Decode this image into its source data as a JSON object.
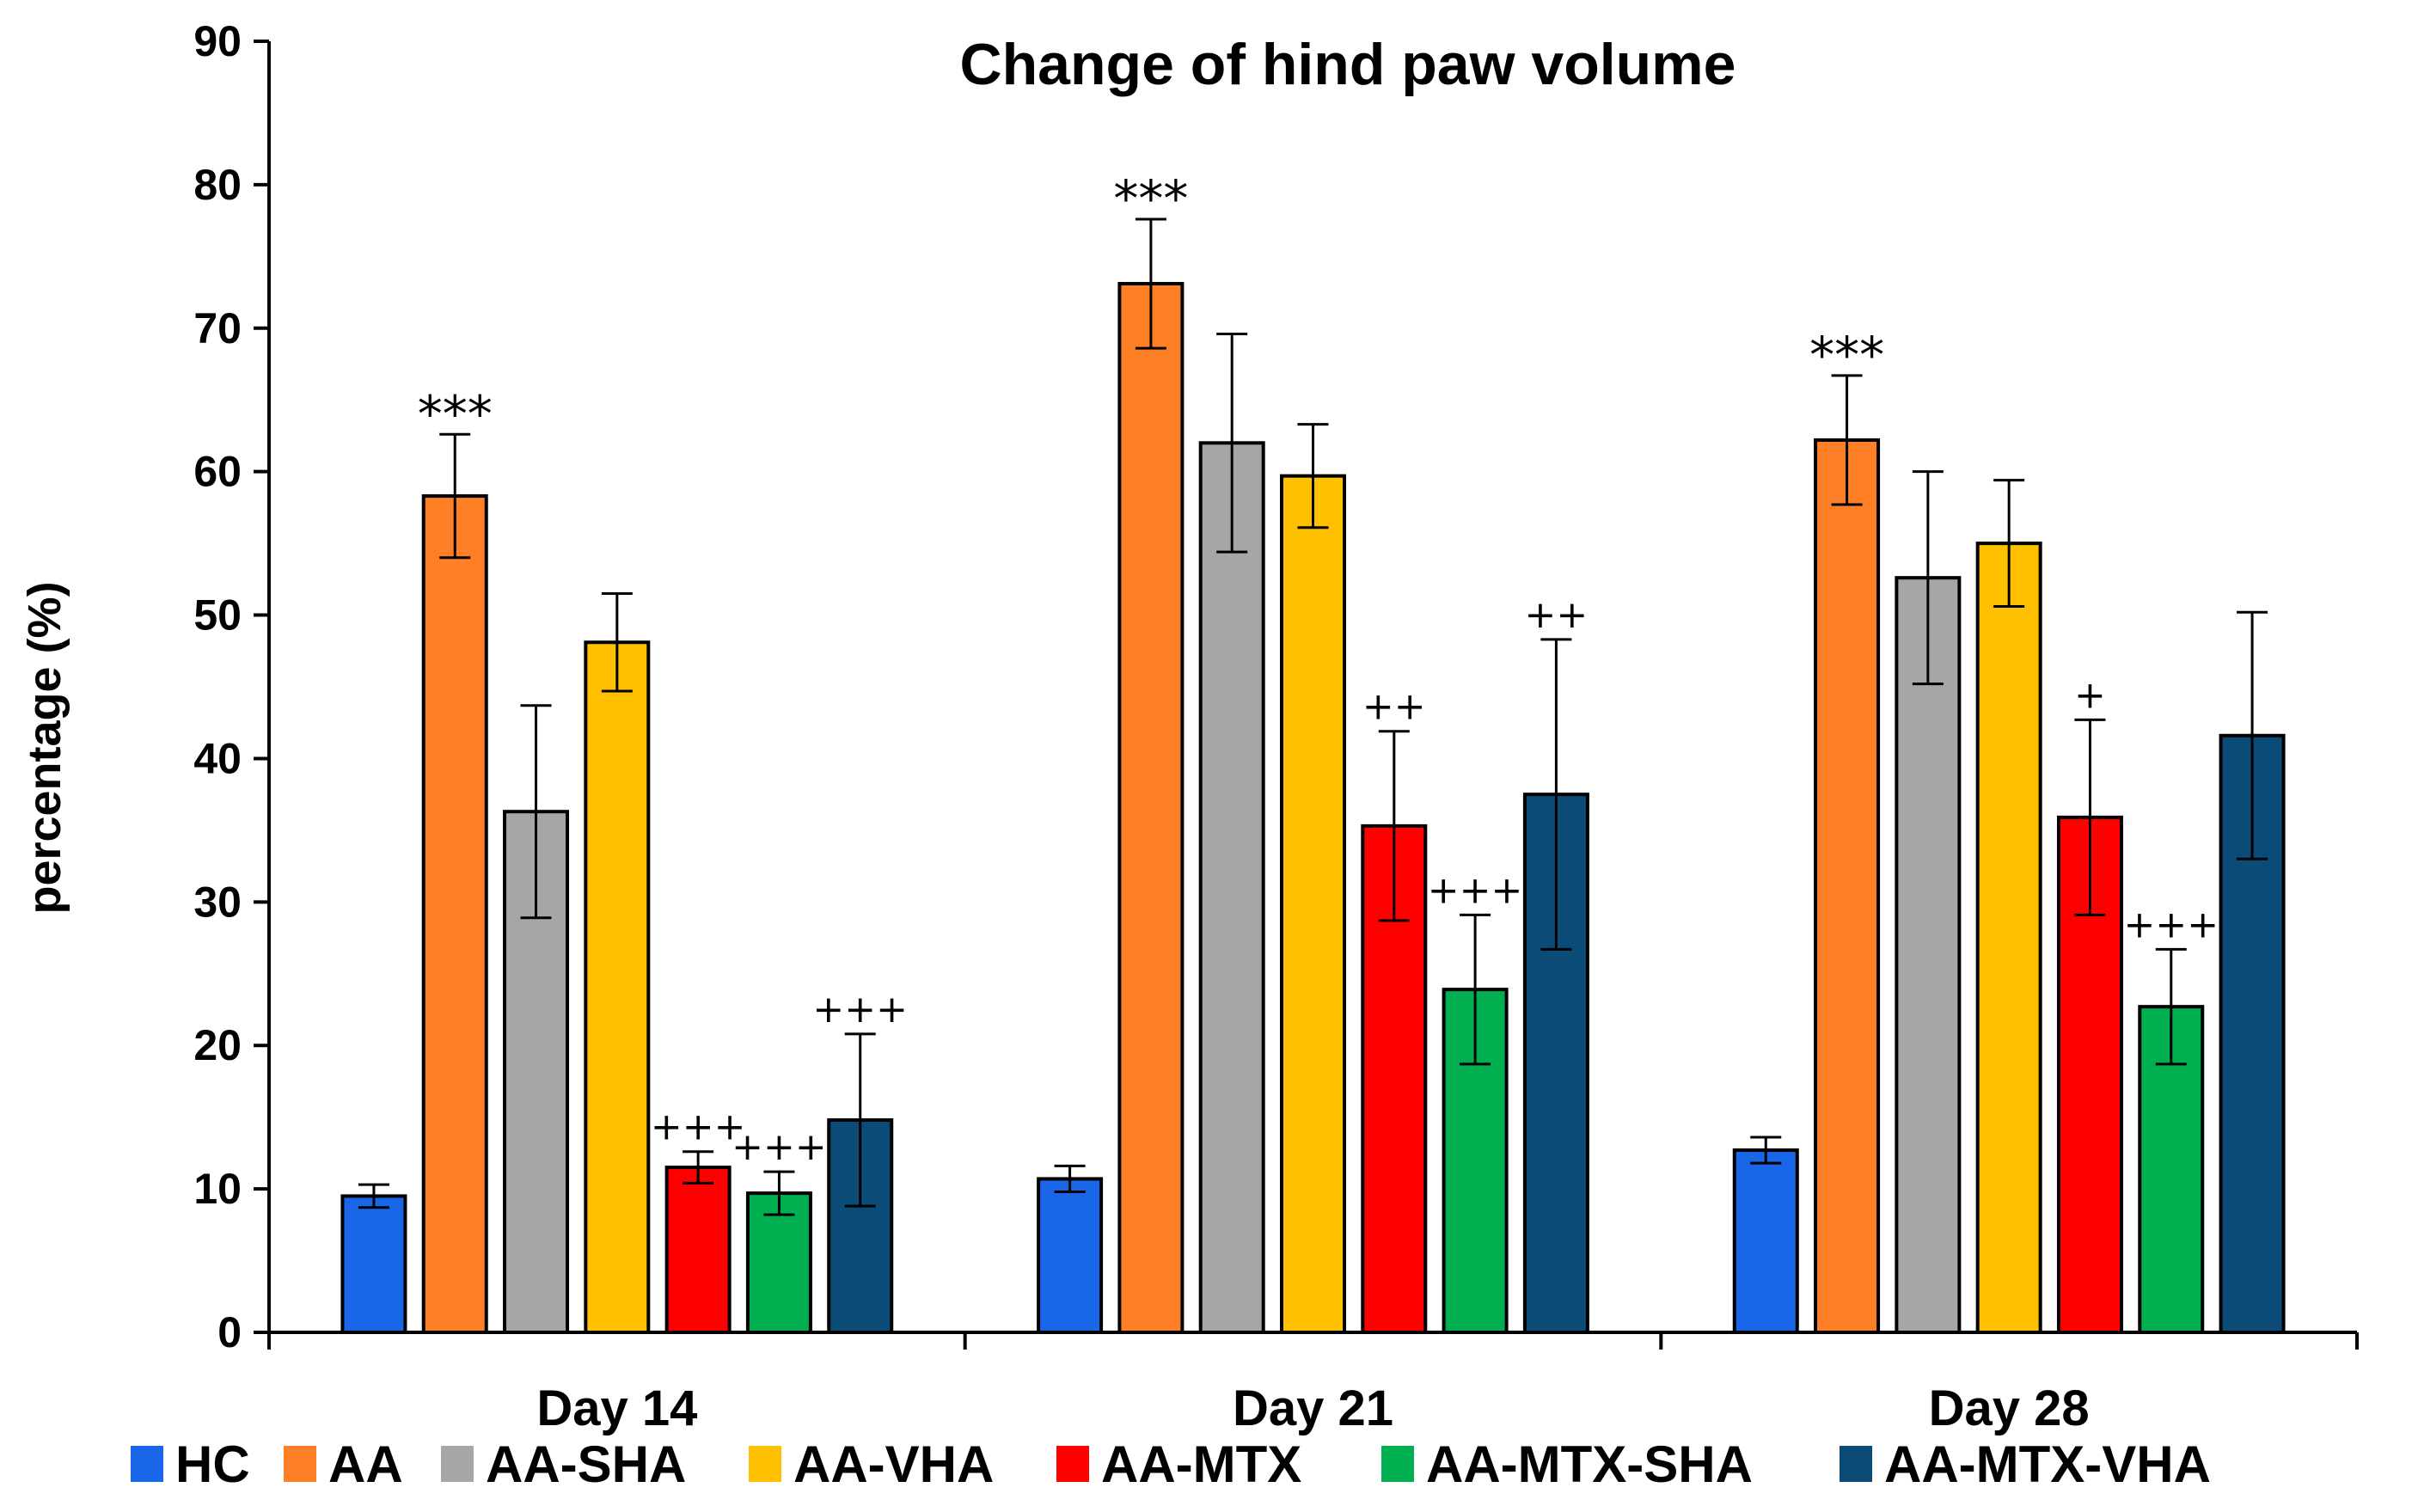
{
  "chart_data": {
    "type": "bar",
    "title": "Change of hind paw volume",
    "xlabel": "",
    "ylabel": "percentage (%)",
    "ylim": [
      0,
      90
    ],
    "yticks": [
      0,
      10,
      20,
      30,
      40,
      50,
      60,
      70,
      80,
      90
    ],
    "ytick_labels": [
      "0",
      "10",
      "20",
      "30",
      "40",
      "50",
      "60",
      "70",
      "80",
      "90"
    ],
    "grid": false,
    "legend_position": "bottom",
    "categories": [
      "Day 14",
      "Day 21",
      "Day 28"
    ],
    "series": [
      {
        "name": "HC",
        "color": "#1a66e8",
        "values": [
          9.5,
          10.7,
          12.7
        ],
        "errors": [
          0.8,
          0.9,
          0.9
        ],
        "significance": [
          "",
          "",
          ""
        ]
      },
      {
        "name": "AA",
        "color": "#ff7f27",
        "values": [
          58.3,
          73.1,
          62.2
        ],
        "errors": [
          4.3,
          4.5,
          4.5
        ],
        "significance": [
          "***",
          "***",
          "***"
        ]
      },
      {
        "name": "AA-SHA",
        "color": "#a6a6a6",
        "values": [
          36.3,
          62.0,
          52.6
        ],
        "errors": [
          7.4,
          7.6,
          7.4
        ],
        "significance": [
          "",
          "",
          ""
        ]
      },
      {
        "name": "AA-VHA",
        "color": "#ffc000",
        "values": [
          48.1,
          59.7,
          55.0
        ],
        "errors": [
          3.4,
          3.6,
          4.4
        ],
        "significance": [
          "",
          "",
          ""
        ]
      },
      {
        "name": "AA-MTX",
        "color": "#ff0000",
        "values": [
          11.5,
          35.3,
          35.9
        ],
        "errors": [
          1.1,
          6.6,
          6.8
        ],
        "significance": [
          "+++",
          "++",
          "+"
        ]
      },
      {
        "name": "AA-MTX-SHA",
        "color": "#00b050",
        "values": [
          9.7,
          23.9,
          22.7
        ],
        "errors": [
          1.5,
          5.2,
          4.0
        ],
        "significance": [
          "+++",
          "+++",
          "+++"
        ]
      },
      {
        "name": "AA-MTX-VHA",
        "color": "#0a4b78",
        "values": [
          14.8,
          37.5,
          41.6
        ],
        "errors": [
          6.0,
          10.8,
          8.6
        ],
        "significance": [
          "+++",
          "++",
          ""
        ]
      }
    ]
  }
}
